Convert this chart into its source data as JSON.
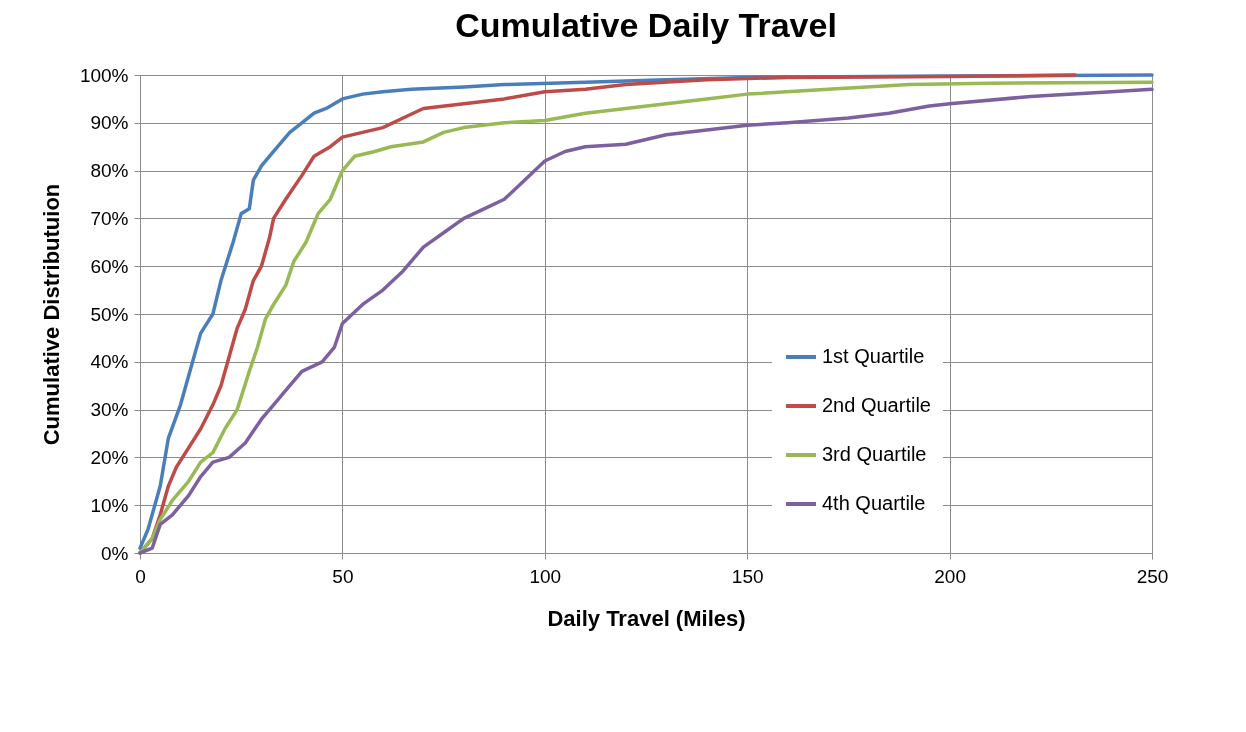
{
  "chart_data": {
    "type": "line",
    "title": "Cumulative Daily Travel",
    "xlabel": "Daily Travel (Miles)",
    "ylabel": "Cumulative Distributuion",
    "xlim": [
      0,
      250
    ],
    "xticks": [
      0,
      50,
      100,
      150,
      200,
      250
    ],
    "ylim": [
      0,
      100
    ],
    "yticks": [
      {
        "value": 0,
        "label": "0%"
      },
      {
        "value": 10,
        "label": "10%"
      },
      {
        "value": 20,
        "label": "20%"
      },
      {
        "value": 30,
        "label": "30%"
      },
      {
        "value": 40,
        "label": "40%"
      },
      {
        "value": 50,
        "label": "50%"
      },
      {
        "value": 60,
        "label": "60%"
      },
      {
        "value": 70,
        "label": "70%"
      },
      {
        "value": 80,
        "label": "80%"
      },
      {
        "value": 90,
        "label": "90%"
      },
      {
        "value": 100,
        "label": "100%"
      }
    ],
    "grid": true,
    "legend": "bottom right",
    "marker": "none",
    "line_style": "solid",
    "series": [
      {
        "name": "1st Quartile",
        "color": "#4a7ebb",
        "x": [
          0,
          2,
          5,
          7,
          10,
          13,
          15,
          18,
          20,
          23,
          25,
          27,
          28,
          30,
          33,
          35,
          37,
          40,
          43,
          46,
          50,
          55,
          60,
          67,
          80,
          90,
          110,
          130,
          150,
          200,
          250
        ],
        "values": [
          1,
          5,
          14,
          24,
          31,
          40,
          46,
          50,
          57,
          65,
          71,
          72,
          78,
          81,
          84,
          86,
          88,
          90,
          92,
          93,
          95,
          96,
          96.5,
          97,
          97.5,
          98,
          98.5,
          99,
          99.5,
          99.8,
          100
        ]
      },
      {
        "name": "2nd Quartile",
        "color": "#be4b48",
        "x": [
          0,
          3,
          5,
          7,
          9,
          12,
          15,
          18,
          20,
          22,
          24,
          26,
          28,
          30,
          32,
          33,
          36,
          40,
          43,
          47,
          50,
          55,
          60,
          65,
          70,
          80,
          90,
          100,
          110,
          120,
          140,
          160,
          200,
          231
        ],
        "values": [
          0,
          3,
          8,
          14,
          18,
          22,
          26,
          31,
          35,
          41,
          47,
          51,
          57,
          60,
          66,
          70,
          74,
          79,
          83,
          85,
          87,
          88,
          89,
          91,
          93,
          94,
          95,
          96.5,
          97,
          98,
          99,
          99.5,
          99.7,
          100
        ]
      },
      {
        "name": "3rd Quartile",
        "color": "#98b954",
        "x": [
          0,
          3,
          5,
          8,
          12,
          15,
          18,
          21,
          24,
          27,
          29,
          31,
          33,
          36,
          38,
          41,
          44,
          47,
          50,
          53,
          58,
          62,
          70,
          75,
          80,
          90,
          100,
          110,
          120,
          140,
          150,
          170,
          190,
          210,
          250
        ],
        "values": [
          0,
          3,
          7,
          11,
          15,
          19,
          21,
          26,
          30,
          38,
          43,
          49,
          52,
          56,
          61,
          65,
          71,
          74,
          80,
          83,
          84,
          85,
          86,
          88,
          89,
          90,
          90.5,
          92,
          93,
          95,
          96,
          97,
          98,
          98.3,
          98.5
        ]
      },
      {
        "name": "4th Quartile",
        "color": "#7d60a0",
        "x": [
          0,
          3,
          5,
          8,
          12,
          15,
          18,
          22,
          26,
          30,
          33,
          36,
          40,
          45,
          48,
          50,
          55,
          60,
          65,
          70,
          75,
          80,
          85,
          90,
          95,
          100,
          105,
          110,
          120,
          130,
          140,
          150,
          160,
          175,
          185,
          195,
          200,
          220,
          240,
          250
        ],
        "values": [
          0,
          1,
          6,
          8,
          12,
          16,
          19,
          20,
          23,
          28,
          31,
          34,
          38,
          40,
          43,
          48,
          52,
          55,
          59,
          64,
          67,
          70,
          72,
          74,
          78,
          82,
          84,
          85,
          85.5,
          87.5,
          88.5,
          89.5,
          90,
          91,
          92,
          93.5,
          94,
          95.5,
          96.5,
          97
        ]
      }
    ]
  }
}
